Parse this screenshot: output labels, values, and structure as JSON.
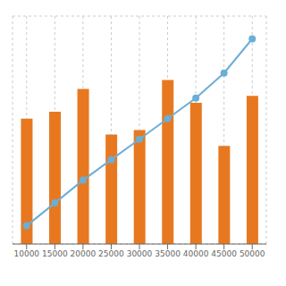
{
  "chart_data": {
    "type": "combo",
    "categories": [
      10000,
      15000,
      20000,
      25000,
      30000,
      35000,
      40000,
      45000,
      50000
    ],
    "series": [
      {
        "type": "bar",
        "color": "#E87820",
        "values": [
          55,
          58,
          68,
          48,
          50,
          72,
          62,
          43,
          65
        ]
      },
      {
        "type": "line",
        "color": "#6BAED6",
        "marker": "circle",
        "values": [
          8,
          18,
          28,
          37,
          46,
          55,
          64,
          75,
          90
        ]
      }
    ],
    "ylim": [
      0,
      100
    ],
    "yticks": [
      0,
      20,
      40,
      60,
      80,
      100
    ],
    "grid": true,
    "tick_labels": "x"
  }
}
